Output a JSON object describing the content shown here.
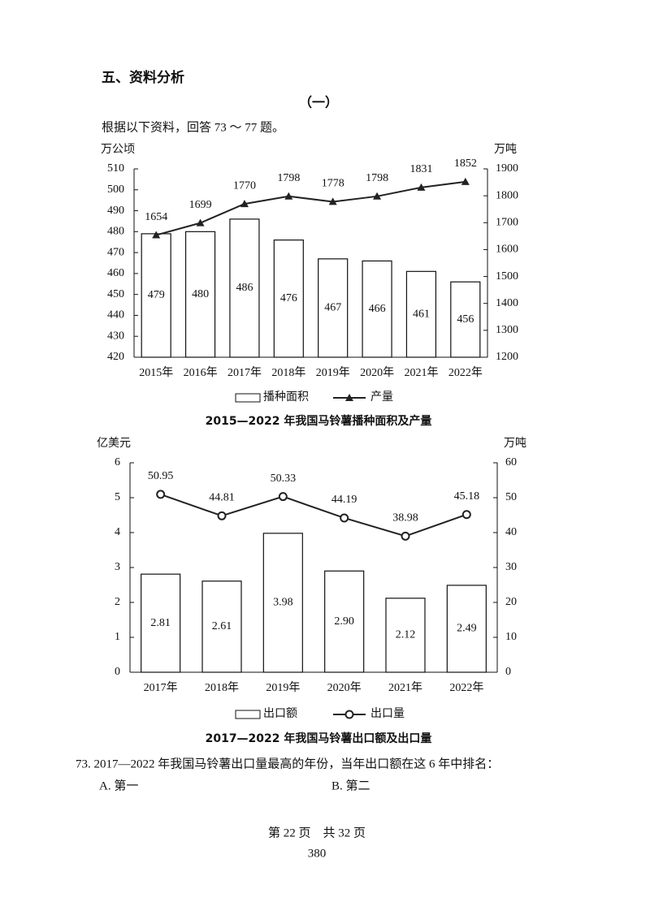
{
  "header": {
    "section": "五、资料分析",
    "part": "（一）",
    "intro": "根据以下资料，回答 73 ～ 77 题。"
  },
  "chart_data": [
    {
      "type": "bar",
      "title": "2015—2022 年我国马铃薯播种面积及产量",
      "ylabel": "万公顷",
      "y2label": "万吨",
      "categories": [
        "2015年",
        "2016年",
        "2017年",
        "2018年",
        "2019年",
        "2020年",
        "2021年",
        "2022年"
      ],
      "series": [
        {
          "name": "播种面积",
          "type": "bar",
          "color": "#ffffff",
          "values": [
            479,
            480,
            486,
            476,
            467,
            466,
            461,
            456
          ]
        },
        {
          "name": "产量",
          "type": "line",
          "axis": "y2",
          "marker": "triangle",
          "color": "#222222",
          "values": [
            1654,
            1699,
            1770,
            1798,
            1778,
            1798,
            1831,
            1852
          ]
        }
      ],
      "ylim": [
        420,
        510
      ],
      "yticks": [
        420,
        430,
        440,
        450,
        460,
        470,
        480,
        490,
        500,
        510
      ],
      "y2lim": [
        1200,
        1900
      ],
      "y2ticks": [
        1200,
        1300,
        1400,
        1500,
        1600,
        1700,
        1800,
        1900
      ],
      "grid": false
    },
    {
      "type": "bar",
      "title": "2017—2022 年我国马铃薯出口额及出口量",
      "ylabel": "亿美元",
      "y2label": "万吨",
      "categories": [
        "2017年",
        "2018年",
        "2019年",
        "2020年",
        "2021年",
        "2022年"
      ],
      "series": [
        {
          "name": "出口额",
          "type": "bar",
          "color": "#ffffff",
          "values": [
            2.81,
            2.61,
            3.98,
            2.9,
            2.12,
            2.49
          ],
          "value_labels": [
            "2.81",
            "2.61",
            "3.98",
            "2.90",
            "2.12",
            "2.49"
          ]
        },
        {
          "name": "出口量",
          "type": "line",
          "axis": "y2",
          "marker": "circle",
          "color": "#222222",
          "values": [
            50.95,
            44.81,
            50.33,
            44.19,
            38.98,
            45.18
          ]
        }
      ],
      "ylim": [
        0,
        6
      ],
      "yticks": [
        0,
        1,
        2,
        3,
        4,
        5,
        6
      ],
      "y2lim": [
        0,
        60
      ],
      "y2ticks": [
        0,
        10,
        20,
        30,
        40,
        50,
        60
      ],
      "grid": false
    }
  ],
  "question": {
    "stem": "73. 2017—2022 年我国马铃薯出口量最高的年份，当年出口额在这 6 年中排名：",
    "options": [
      "A. 第一",
      "B. 第二"
    ]
  },
  "footer": {
    "page": "第 22 页　共 32 页",
    "number": "380"
  }
}
